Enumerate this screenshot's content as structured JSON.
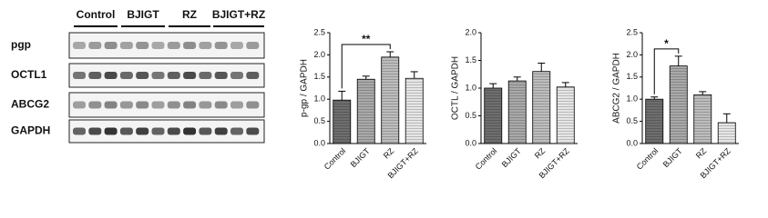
{
  "blot": {
    "groups": [
      "Control",
      "BJIGT",
      "RZ",
      "BJIGT+RZ"
    ],
    "proteins": [
      "pgp",
      "OCTL1",
      "ABCG2",
      "GAPDH"
    ]
  },
  "chart_data": [
    {
      "type": "bar",
      "y_label": "p-gp / GAPDH",
      "categories": [
        "Control",
        "BJIGT",
        "RZ",
        "BJIGT+RZ"
      ],
      "values": [
        0.98,
        1.45,
        1.95,
        1.47
      ],
      "errors": [
        0.2,
        0.07,
        0.12,
        0.15
      ],
      "colors": [
        "#6e6e6e",
        "#a9a9a9",
        "#bdbdbd",
        "#e6e6e6"
      ],
      "ylim": [
        0,
        2.5
      ],
      "yticks": [
        {
          "value": 0,
          "label": "0.0"
        },
        0.5,
        {
          "value": 1,
          "label": "1.0"
        },
        1.5,
        {
          "value": 2,
          "label": "2.0"
        },
        2.5
      ],
      "annotation": {
        "text": "**",
        "between": [
          "Control",
          "RZ"
        ]
      }
    },
    {
      "type": "bar",
      "y_label": "OCTL / GAPDH",
      "categories": [
        "Control",
        "BJIGT",
        "RZ",
        "BJIGT+RZ"
      ],
      "values": [
        1.0,
        1.13,
        1.3,
        1.02
      ],
      "errors": [
        0.08,
        0.07,
        0.15,
        0.08
      ],
      "colors": [
        "#6e6e6e",
        "#a9a9a9",
        "#bdbdbd",
        "#e6e6e6"
      ],
      "ylim": [
        0,
        2
      ],
      "yticks": [
        {
          "value": 0,
          "label": "0.0"
        },
        0.5,
        {
          "value": 1,
          "label": "1.0"
        },
        1.5,
        {
          "value": 2,
          "label": "2.0"
        }
      ]
    },
    {
      "type": "bar",
      "y_label": "ABCG2 / GAPDH",
      "categories": [
        "Control",
        "BJIGT",
        "RZ",
        "BJIGT+RZ"
      ],
      "values": [
        1.0,
        1.75,
        1.1,
        0.47
      ],
      "errors": [
        0.05,
        0.22,
        0.07,
        0.2
      ],
      "colors": [
        "#6e6e6e",
        "#a9a9a9",
        "#bdbdbd",
        "#e6e6e6"
      ],
      "ylim": [
        0,
        2.5
      ],
      "yticks": [
        {
          "value": 0,
          "label": "0.0"
        },
        0.5,
        {
          "value": 1,
          "label": "1.0"
        },
        1.5,
        {
          "value": 2,
          "label": "2.0"
        },
        2.5
      ],
      "annotation": {
        "text": "*",
        "between": [
          "Control",
          "BJIGT"
        ]
      }
    }
  ]
}
